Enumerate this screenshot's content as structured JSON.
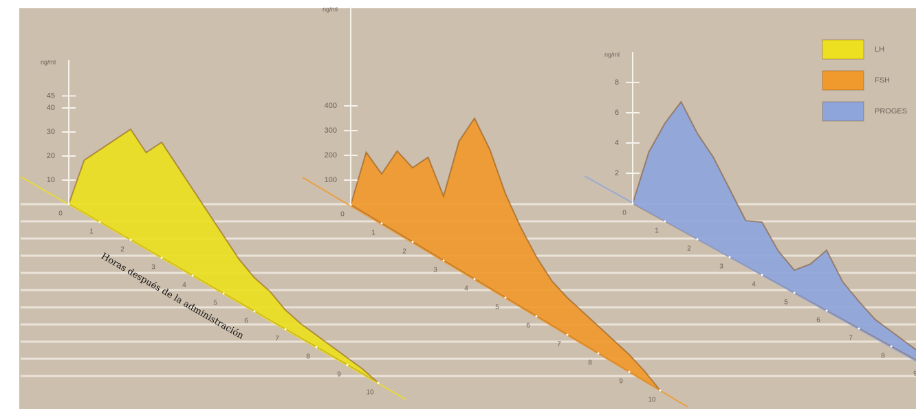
{
  "chart_data": [
    {
      "type": "area",
      "y_label": "ng/ml",
      "x": [
        0,
        0.5,
        1,
        1.5,
        2,
        2.5,
        3,
        3.5,
        4,
        4.5,
        5,
        5.5,
        6,
        6.5,
        7,
        7.5,
        8,
        8.5,
        9,
        9.5,
        10
      ],
      "series": [
        {
          "name": "LH",
          "color": "#ece021",
          "values": [
            0,
            22,
            30,
            38,
            46,
            40,
            48,
            42,
            36,
            30,
            24,
            18,
            14,
            12,
            8,
            6,
            5,
            4,
            3,
            2,
            0
          ]
        }
      ],
      "xlim": [
        0,
        10
      ],
      "xticks": [
        0,
        1,
        2,
        3,
        4,
        5,
        6,
        7,
        8,
        9,
        10
      ],
      "ylim": [
        0,
        60
      ],
      "yticks": [
        10,
        20,
        30,
        40,
        45
      ]
    },
    {
      "type": "area",
      "y_label": "ng/ml",
      "x": [
        0,
        0.5,
        1,
        1.5,
        2,
        2.5,
        3,
        3.5,
        4,
        4.5,
        5,
        5.5,
        6,
        6.5,
        7,
        7.5,
        8,
        8.5,
        9,
        9.5,
        10
      ],
      "series": [
        {
          "name": "FSH",
          "color": "#f0992c",
          "values": [
            0,
            250,
            200,
            330,
            300,
            380,
            260,
            520,
            650,
            560,
            420,
            320,
            240,
            180,
            150,
            130,
            110,
            90,
            70,
            40,
            0
          ]
        }
      ],
      "xlim": [
        0,
        10
      ],
      "xticks": [
        0,
        1,
        2,
        3,
        4,
        5,
        6,
        7,
        8,
        9,
        10
      ],
      "ylim": [
        0,
        800
      ],
      "yticks": [
        100,
        200,
        300,
        400
      ]
    },
    {
      "type": "area",
      "y_label": "ng/ml",
      "x": [
        0,
        0.5,
        1,
        1.5,
        2,
        2.5,
        3,
        3.5,
        4,
        4.5,
        5,
        5.5,
        6,
        6.5,
        7,
        7.5,
        8,
        8.5,
        9
      ],
      "series": [
        {
          "name": "PROGES",
          "color": "#8ea5dc",
          "values": [
            0,
            4,
            6.5,
            8.5,
            7,
            6,
            4.5,
            3,
            3.5,
            2.2,
            1.5,
            2.5,
            4,
            2.5,
            1.8,
            1.2,
            1,
            0.8,
            0.6
          ]
        }
      ],
      "xlim": [
        0,
        9
      ],
      "xticks": [
        0,
        1,
        2,
        3,
        4,
        5,
        6,
        7,
        8,
        9
      ],
      "ylim": [
        0,
        10
      ],
      "yticks": [
        2,
        4,
        6,
        8
      ]
    }
  ],
  "x_label": "Horas después de la administración"
}
